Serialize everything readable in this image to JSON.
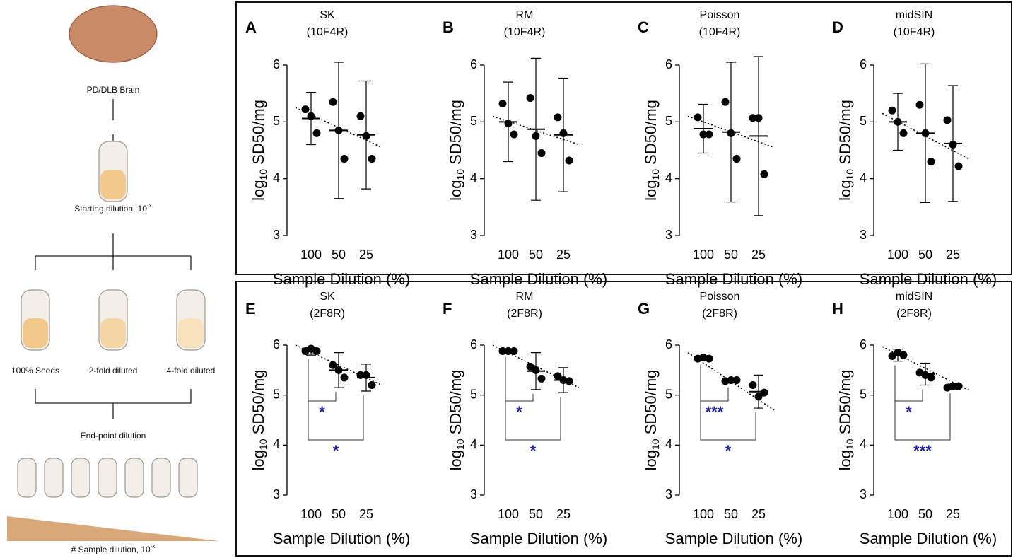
{
  "diagram": {
    "brain": "PD/DLB Brain",
    "start": {
      "text": "Starting dilution, 10",
      "sup": "-x"
    },
    "tubes": [
      "100% Seeds",
      "2-fold diluted",
      "4-fold diluted"
    ],
    "endpoint": "End-point dilution",
    "sample": {
      "text": "# Sample dilution, 10",
      "sup": "-x"
    }
  },
  "chart_data": [
    {
      "type": "dotplot",
      "panel": "A",
      "title": "SK",
      "subtitle": "(10F4R)",
      "ylabel": [
        "log",
        "10",
        " SD50/mg"
      ],
      "xlabel": "Sample Dilution (%)",
      "categories": [
        "100",
        "50",
        "25"
      ],
      "points": [
        [
          5.22,
          5.1,
          4.8
        ],
        [
          5.35,
          4.85,
          4.35
        ],
        [
          5.1,
          4.75,
          4.35
        ]
      ],
      "means": [
        5.06,
        4.85,
        4.77
      ],
      "errors": [
        0.46,
        1.2,
        0.95
      ],
      "trend": [
        5.25,
        4.55
      ],
      "ylim": [
        3,
        6
      ],
      "yticks": [
        3,
        4,
        5,
        6
      ],
      "color": "#000000",
      "brackets": []
    },
    {
      "type": "dotplot",
      "panel": "B",
      "title": "RM",
      "subtitle": "(10F4R)",
      "ylabel": [
        "log",
        "10",
        " SD50/mg"
      ],
      "xlabel": "Sample Dilution (%)",
      "categories": [
        "100",
        "50",
        "25"
      ],
      "points": [
        [
          5.32,
          4.97,
          4.78
        ],
        [
          5.42,
          4.75,
          4.45
        ],
        [
          5.08,
          4.8,
          4.32
        ]
      ],
      "means": [
        5.0,
        4.87,
        4.77
      ],
      "errors": [
        0.7,
        1.25,
        1.0
      ],
      "trend": [
        5.1,
        4.6
      ],
      "ylim": [
        3,
        6
      ],
      "yticks": [
        3,
        4,
        5,
        6
      ],
      "color": "#000000",
      "brackets": []
    },
    {
      "type": "dotplot",
      "panel": "C",
      "title": "Poisson",
      "subtitle": "(10F4R)",
      "ylabel": [
        "log",
        "10",
        " SD50/mg"
      ],
      "xlabel": "Sample Dilution (%)",
      "categories": [
        "100",
        "50",
        "25"
      ],
      "points": [
        [
          5.08,
          4.78,
          4.78
        ],
        [
          5.35,
          4.8,
          4.35
        ],
        [
          5.07,
          5.07,
          4.08
        ]
      ],
      "means": [
        4.88,
        4.82,
        4.75
      ],
      "errors": [
        0.43,
        1.23,
        1.4
      ],
      "trend": [
        5.1,
        4.55
      ],
      "ylim": [
        3,
        6
      ],
      "yticks": [
        3,
        4,
        5,
        6
      ],
      "color": "#000000",
      "brackets": []
    },
    {
      "type": "dotplot",
      "panel": "D",
      "title": "midSIN",
      "subtitle": "(10F4R)",
      "ylabel": [
        "log",
        "10",
        " SD50/mg"
      ],
      "xlabel": "Sample Dilution (%)",
      "categories": [
        "100",
        "50",
        "25"
      ],
      "points": [
        [
          5.2,
          5.0,
          4.8
        ],
        [
          5.3,
          4.8,
          4.3
        ],
        [
          5.03,
          4.6,
          4.22
        ]
      ],
      "means": [
        5.0,
        4.8,
        4.62
      ],
      "errors": [
        0.5,
        1.22,
        1.02
      ],
      "trend": [
        5.15,
        4.35
      ],
      "ylim": [
        3,
        6
      ],
      "yticks": [
        3,
        4,
        5,
        6
      ],
      "color": "#000000",
      "brackets": []
    },
    {
      "type": "dotplot",
      "panel": "E",
      "title": "SK",
      "subtitle": "(2F8R)",
      "ylabel": [
        "log",
        "10",
        " SD50/mg"
      ],
      "xlabel": "Sample Dilution (%)",
      "categories": [
        "100",
        "50",
        "25"
      ],
      "points": [
        [
          5.88,
          5.93,
          5.88
        ],
        [
          5.6,
          5.5,
          5.35
        ],
        [
          5.4,
          5.4,
          5.2
        ]
      ],
      "means": [
        5.88,
        5.5,
        5.35
      ],
      "errors": [
        0.08,
        0.35,
        0.27
      ],
      "trend": [
        6.0,
        5.2
      ],
      "ylim": [
        3,
        6
      ],
      "yticks": [
        3,
        4,
        5,
        6
      ],
      "color": "#000000",
      "annotation_color": "#1f1fa8",
      "brackets": [
        {
          "from": 0,
          "to": 1,
          "label": "*"
        },
        {
          "from": 0,
          "to": 2,
          "label": "*"
        }
      ]
    },
    {
      "type": "dotplot",
      "panel": "F",
      "title": "RM",
      "subtitle": "(2F8R)",
      "ylabel": [
        "log",
        "10",
        " SD50/mg"
      ],
      "xlabel": "Sample Dilution (%)",
      "categories": [
        "100",
        "50",
        "25"
      ],
      "points": [
        [
          5.88,
          5.88,
          5.88
        ],
        [
          5.57,
          5.5,
          5.33
        ],
        [
          5.38,
          5.3,
          5.28
        ]
      ],
      "means": [
        5.88,
        5.48,
        5.3
      ],
      "errors": [
        0.03,
        0.37,
        0.25
      ],
      "trend": [
        6.0,
        5.15
      ],
      "ylim": [
        3,
        6
      ],
      "yticks": [
        3,
        4,
        5,
        6
      ],
      "color": "#000000",
      "annotation_color": "#1f1fa8",
      "brackets": [
        {
          "from": 0,
          "to": 1,
          "label": "*"
        },
        {
          "from": 0,
          "to": 2,
          "label": "*"
        }
      ]
    },
    {
      "type": "dotplot",
      "panel": "G",
      "title": "Poisson",
      "subtitle": "(2F8R)",
      "ylabel": [
        "log",
        "10",
        " SD50/mg"
      ],
      "xlabel": "Sample Dilution (%)",
      "categories": [
        "100",
        "50",
        "25"
      ],
      "points": [
        [
          5.73,
          5.75,
          5.73
        ],
        [
          5.28,
          5.3,
          5.3
        ],
        [
          5.2,
          4.97,
          5.05
        ]
      ],
      "means": [
        5.74,
        5.29,
        5.07
      ],
      "errors": [
        0.05,
        0.05,
        0.33
      ],
      "trend": [
        5.85,
        4.7
      ],
      "ylim": [
        3,
        6
      ],
      "yticks": [
        3,
        4,
        5,
        6
      ],
      "color": "#000000",
      "annotation_color": "#1f1fa8",
      "brackets": [
        {
          "from": 0,
          "to": 1,
          "label": "***"
        },
        {
          "from": 0,
          "to": 2,
          "label": "*"
        }
      ]
    },
    {
      "type": "dotplot",
      "panel": "H",
      "title": "midSIN",
      "subtitle": "(2F8R)",
      "ylabel": [
        "log",
        "10",
        " SD50/mg"
      ],
      "xlabel": "Sample Dilution (%)",
      "categories": [
        "100",
        "50",
        "25"
      ],
      "points": [
        [
          5.78,
          5.85,
          5.8
        ],
        [
          5.45,
          5.4,
          5.35
        ],
        [
          5.15,
          5.18,
          5.18
        ]
      ],
      "means": [
        5.8,
        5.42,
        5.17
      ],
      "errors": [
        0.12,
        0.22,
        0.05
      ],
      "trend": [
        5.97,
        5.1
      ],
      "ylim": [
        3,
        6
      ],
      "yticks": [
        3,
        4,
        5,
        6
      ],
      "color": "#000000",
      "annotation_color": "#1f1fa8",
      "brackets": [
        {
          "from": 0,
          "to": 1,
          "label": "*"
        },
        {
          "from": 0,
          "to": 2,
          "label": "***"
        }
      ]
    }
  ]
}
